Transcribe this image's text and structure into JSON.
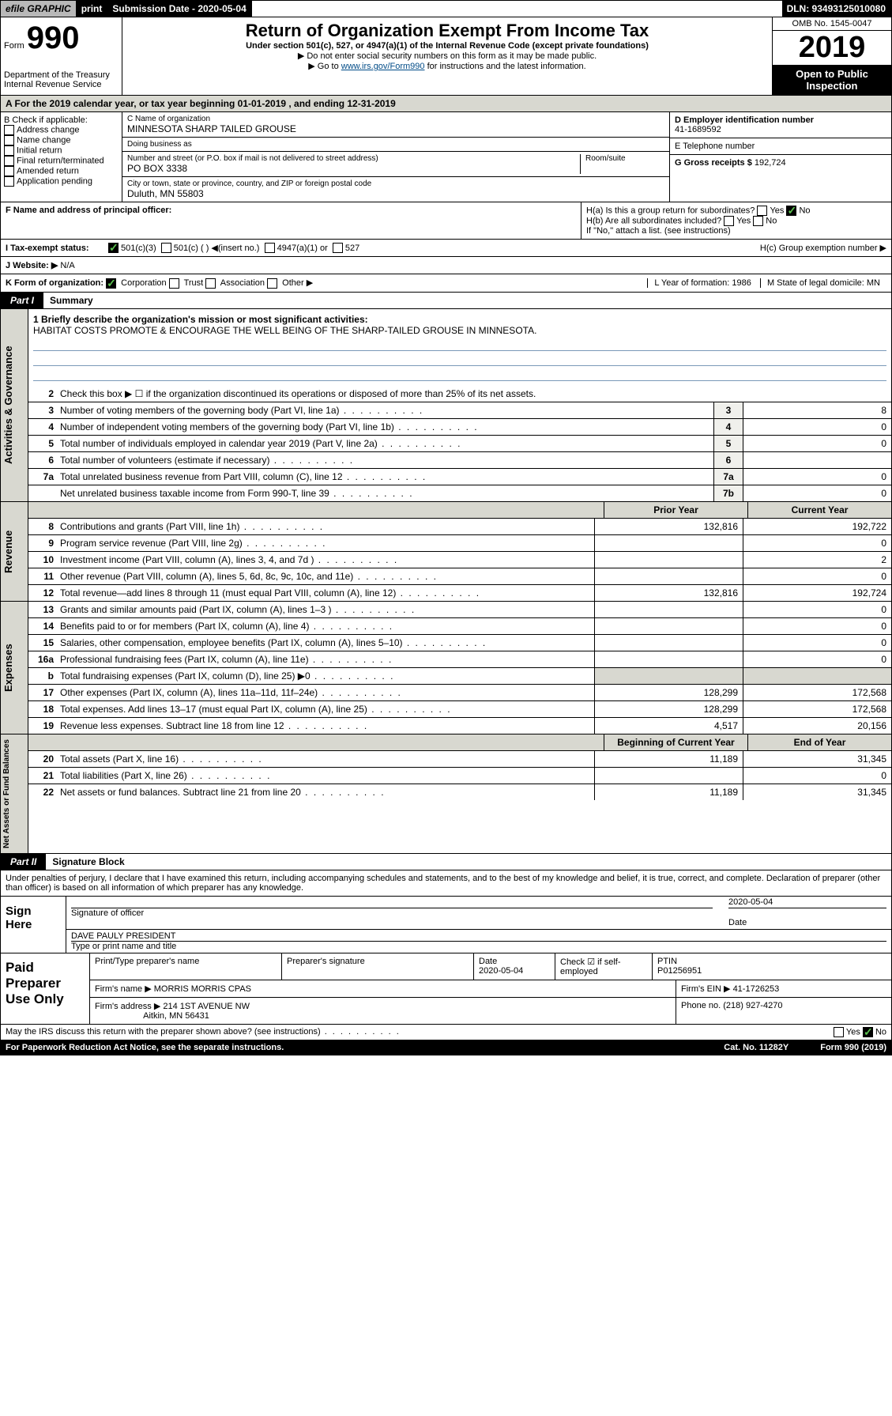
{
  "topbar": {
    "efile": "efile GRAPHIC",
    "print": "print",
    "submission": "Submission Date - 2020-05-04",
    "dln": "DLN: 93493125010080"
  },
  "header": {
    "form_label": "Form",
    "form_num": "990",
    "title": "Return of Organization Exempt From Income Tax",
    "subtitle": "Under section 501(c), 527, or 4947(a)(1) of the Internal Revenue Code (except private foundations)",
    "note1": "▶ Do not enter social security numbers on this form as it may be made public.",
    "note2_pre": "▶ Go to ",
    "note2_link": "www.irs.gov/Form990",
    "note2_post": " for instructions and the latest information.",
    "dept": "Department of the Treasury",
    "irs": "Internal Revenue Service",
    "omb": "OMB No. 1545-0047",
    "year": "2019",
    "open": "Open to Public Inspection"
  },
  "period": "A For the 2019 calendar year, or tax year beginning 01-01-2019    , and ending 12-31-2019",
  "colB": {
    "label": "B Check if applicable:",
    "opts": [
      "Address change",
      "Name change",
      "Initial return",
      "Final return/terminated",
      "Amended return",
      "Application pending"
    ]
  },
  "colC": {
    "name_label": "C Name of organization",
    "name": "MINNESOTA SHARP TAILED GROUSE",
    "dba_label": "Doing business as",
    "dba": "",
    "addr_label": "Number and street (or P.O. box if mail is not delivered to street address)",
    "room_label": "Room/suite",
    "addr": "PO BOX 3338",
    "city_label": "City or town, state or province, country, and ZIP or foreign postal code",
    "city": "Duluth, MN  55803",
    "f_label": "F Name and address of principal officer:",
    "f_val": ""
  },
  "colD": {
    "ein_label": "D Employer identification number",
    "ein": "41-1689592",
    "tel_label": "E Telephone number",
    "tel": "",
    "gross_label": "G Gross receipts $",
    "gross": "192,724"
  },
  "colH": {
    "ha": "H(a)  Is this a group return for subordinates?",
    "hb": "H(b)  Are all subordinates included?",
    "hb_note": "If \"No,\" attach a list. (see instructions)",
    "hc": "H(c)  Group exemption number ▶",
    "yes": "Yes",
    "no": "No"
  },
  "status": {
    "label": "I    Tax-exempt status:",
    "o1": "501(c)(3)",
    "o2": "501(c) (  ) ◀(insert no.)",
    "o3": "4947(a)(1) or",
    "o4": "527"
  },
  "website": {
    "label": "J   Website: ▶",
    "val": "N/A"
  },
  "korg": {
    "label": "K Form of organization:",
    "o1": "Corporation",
    "o2": "Trust",
    "o3": "Association",
    "o4": "Other ▶",
    "l": "L Year of formation: 1986",
    "m": "M State of legal domicile: MN"
  },
  "part1": {
    "tag": "Part I",
    "title": "Summary"
  },
  "gov": {
    "l1_label": "1  Briefly describe the organization's mission or most significant activities:",
    "l1_val": "HABITAT COSTS PROMOTE & ENCOURAGE THE WELL BEING OF THE SHARP-TAILED GROUSE IN MINNESOTA.",
    "l2": "Check this box ▶ ☐  if the organization discontinued its operations or disposed of more than 25% of its net assets.",
    "rows": [
      {
        "n": "3",
        "t": "Number of voting members of the governing body (Part VI, line 1a)",
        "b": "3",
        "v": "8"
      },
      {
        "n": "4",
        "t": "Number of independent voting members of the governing body (Part VI, line 1b)",
        "b": "4",
        "v": "0"
      },
      {
        "n": "5",
        "t": "Total number of individuals employed in calendar year 2019 (Part V, line 2a)",
        "b": "5",
        "v": "0"
      },
      {
        "n": "6",
        "t": "Total number of volunteers (estimate if necessary)",
        "b": "6",
        "v": ""
      },
      {
        "n": "7a",
        "t": "Total unrelated business revenue from Part VIII, column (C), line 12",
        "b": "7a",
        "v": "0"
      },
      {
        "n": "",
        "t": "Net unrelated business taxable income from Form 990-T, line 39",
        "b": "7b",
        "v": "0"
      }
    ]
  },
  "rev": {
    "hdr1": "Prior Year",
    "hdr2": "Current Year",
    "rows": [
      {
        "n": "8",
        "t": "Contributions and grants (Part VIII, line 1h)",
        "p": "132,816",
        "c": "192,722"
      },
      {
        "n": "9",
        "t": "Program service revenue (Part VIII, line 2g)",
        "p": "",
        "c": "0"
      },
      {
        "n": "10",
        "t": "Investment income (Part VIII, column (A), lines 3, 4, and 7d )",
        "p": "",
        "c": "2"
      },
      {
        "n": "11",
        "t": "Other revenue (Part VIII, column (A), lines 5, 6d, 8c, 9c, 10c, and 11e)",
        "p": "",
        "c": "0"
      },
      {
        "n": "12",
        "t": "Total revenue—add lines 8 through 11 (must equal Part VIII, column (A), line 12)",
        "p": "132,816",
        "c": "192,724"
      }
    ]
  },
  "exp": {
    "rows": [
      {
        "n": "13",
        "t": "Grants and similar amounts paid (Part IX, column (A), lines 1–3 )",
        "p": "",
        "c": "0"
      },
      {
        "n": "14",
        "t": "Benefits paid to or for members (Part IX, column (A), line 4)",
        "p": "",
        "c": "0"
      },
      {
        "n": "15",
        "t": "Salaries, other compensation, employee benefits (Part IX, column (A), lines 5–10)",
        "p": "",
        "c": "0"
      },
      {
        "n": "16a",
        "t": "Professional fundraising fees (Part IX, column (A), line 11e)",
        "p": "",
        "c": "0"
      },
      {
        "n": "b",
        "t": "Total fundraising expenses (Part IX, column (D), line 25) ▶0",
        "p": "",
        "c": "",
        "shade": true
      },
      {
        "n": "17",
        "t": "Other expenses (Part IX, column (A), lines 11a–11d, 11f–24e)",
        "p": "128,299",
        "c": "172,568"
      },
      {
        "n": "18",
        "t": "Total expenses. Add lines 13–17 (must equal Part IX, column (A), line 25)",
        "p": "128,299",
        "c": "172,568"
      },
      {
        "n": "19",
        "t": "Revenue less expenses. Subtract line 18 from line 12",
        "p": "4,517",
        "c": "20,156"
      }
    ]
  },
  "net": {
    "hdr1": "Beginning of Current Year",
    "hdr2": "End of Year",
    "rows": [
      {
        "n": "20",
        "t": "Total assets (Part X, line 16)",
        "p": "11,189",
        "c": "31,345"
      },
      {
        "n": "21",
        "t": "Total liabilities (Part X, line 26)",
        "p": "",
        "c": "0"
      },
      {
        "n": "22",
        "t": "Net assets or fund balances. Subtract line 21 from line 20",
        "p": "11,189",
        "c": "31,345"
      }
    ]
  },
  "part2": {
    "tag": "Part II",
    "title": "Signature Block"
  },
  "sig": {
    "perjury": "Under penalties of perjury, I declare that I have examined this return, including accompanying schedules and statements, and to the best of my knowledge and belief, it is true, correct, and complete. Declaration of preparer (other than officer) is based on all information of which preparer has any knowledge.",
    "sign_here": "Sign Here",
    "sig_officer": "Signature of officer",
    "date": "2020-05-04",
    "date_label": "Date",
    "name": "DAVE PAULY PRESIDENT",
    "name_label": "Type or print name and title"
  },
  "paid": {
    "label": "Paid Preparer Use Only",
    "h1": "Print/Type preparer's name",
    "h2": "Preparer's signature",
    "h3": "Date",
    "h3v": "2020-05-04",
    "h4": "Check ☑ if self-employed",
    "h5": "PTIN",
    "h5v": "P01256951",
    "firm_name_l": "Firm's name    ▶",
    "firm_name": "MORRIS MORRIS CPAS",
    "firm_ein_l": "Firm's EIN ▶",
    "firm_ein": "41-1726253",
    "firm_addr_l": "Firm's address ▶",
    "firm_addr": "214 1ST AVENUE NW",
    "firm_city": "Aitkin, MN  56431",
    "phone_l": "Phone no.",
    "phone": "(218) 927-4270"
  },
  "discuss": "May the IRS discuss this return with the preparer shown above? (see instructions)",
  "footer": {
    "l": "For Paperwork Reduction Act Notice, see the separate instructions.",
    "m": "Cat. No. 11282Y",
    "r": "Form 990 (2019)"
  }
}
